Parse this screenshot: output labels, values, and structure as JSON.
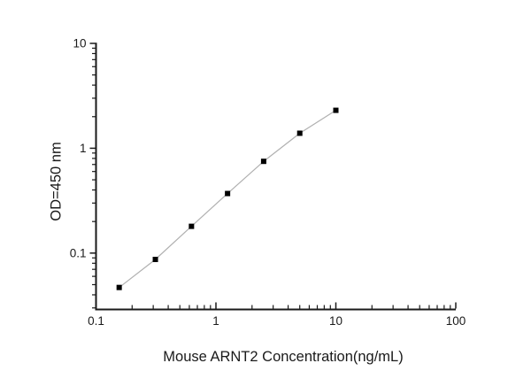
{
  "chart_data": {
    "type": "scatter",
    "title": "",
    "xlabel": "Mouse ARNT2 Concentration(ng/mL)",
    "ylabel": "OD=450 nm",
    "x_scale": "log",
    "y_scale": "log",
    "xlim": [
      0.1,
      100
    ],
    "ylim": [
      0.029,
      10
    ],
    "x_major_ticks": [
      0.1,
      1,
      10,
      100
    ],
    "x_tick_labels": [
      "0.1",
      "1",
      "10",
      "100"
    ],
    "y_major_ticks": [
      0.1,
      1,
      10
    ],
    "y_tick_labels": [
      "0.1",
      "1",
      "10"
    ],
    "grid": false,
    "legend": "none",
    "marker": "filled-square",
    "colors": {
      "axis": "#1a1a1a",
      "tick_text": "#1a1a1a",
      "marker": "#000000",
      "connect_line": "#b0b0b0"
    },
    "series": [
      {
        "name": "standard-curve",
        "x": [
          0.156,
          0.3125,
          0.625,
          1.25,
          2.5,
          5,
          10
        ],
        "y": [
          0.047,
          0.087,
          0.18,
          0.37,
          0.75,
          1.39,
          2.3
        ]
      }
    ]
  }
}
